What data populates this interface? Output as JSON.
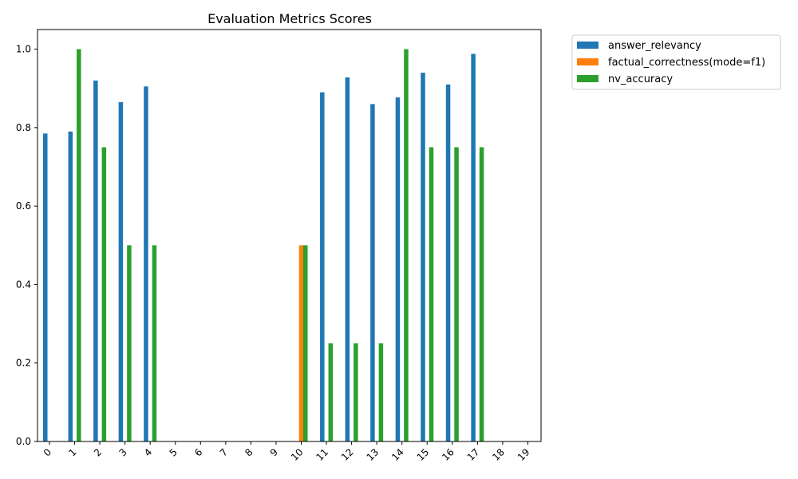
{
  "chart_data": {
    "type": "bar",
    "title": "Evaluation Metrics Scores",
    "xlabel": "",
    "ylabel": "",
    "categories": [
      "0",
      "1",
      "2",
      "3",
      "4",
      "5",
      "6",
      "7",
      "8",
      "9",
      "10",
      "11",
      "12",
      "13",
      "14",
      "15",
      "16",
      "17",
      "18",
      "19"
    ],
    "ylim": [
      0,
      1.05
    ],
    "yticks": [
      "0.0",
      "0.2",
      "0.4",
      "0.6",
      "0.8",
      "1.0"
    ],
    "grid": false,
    "legend_position": "outside-top-right",
    "series": [
      {
        "name": "answer_relevancy",
        "color": "#1f77b4",
        "values": [
          0.785,
          0.79,
          0.92,
          0.865,
          0.905,
          null,
          null,
          null,
          null,
          null,
          null,
          0.89,
          0.928,
          0.86,
          0.877,
          0.94,
          0.91,
          0.988,
          null,
          null
        ]
      },
      {
        "name": "factual_correctness(mode=f1)",
        "color": "#ff7f0e",
        "values": [
          null,
          null,
          null,
          null,
          null,
          null,
          null,
          null,
          null,
          null,
          0.5,
          null,
          null,
          null,
          null,
          null,
          null,
          null,
          null,
          null
        ]
      },
      {
        "name": "nv_accuracy",
        "color": "#2ca02c",
        "values": [
          null,
          1.0,
          0.75,
          0.5,
          0.5,
          null,
          null,
          null,
          null,
          null,
          0.5,
          0.25,
          0.25,
          0.25,
          1.0,
          0.75,
          0.75,
          0.75,
          null,
          null
        ]
      }
    ]
  }
}
